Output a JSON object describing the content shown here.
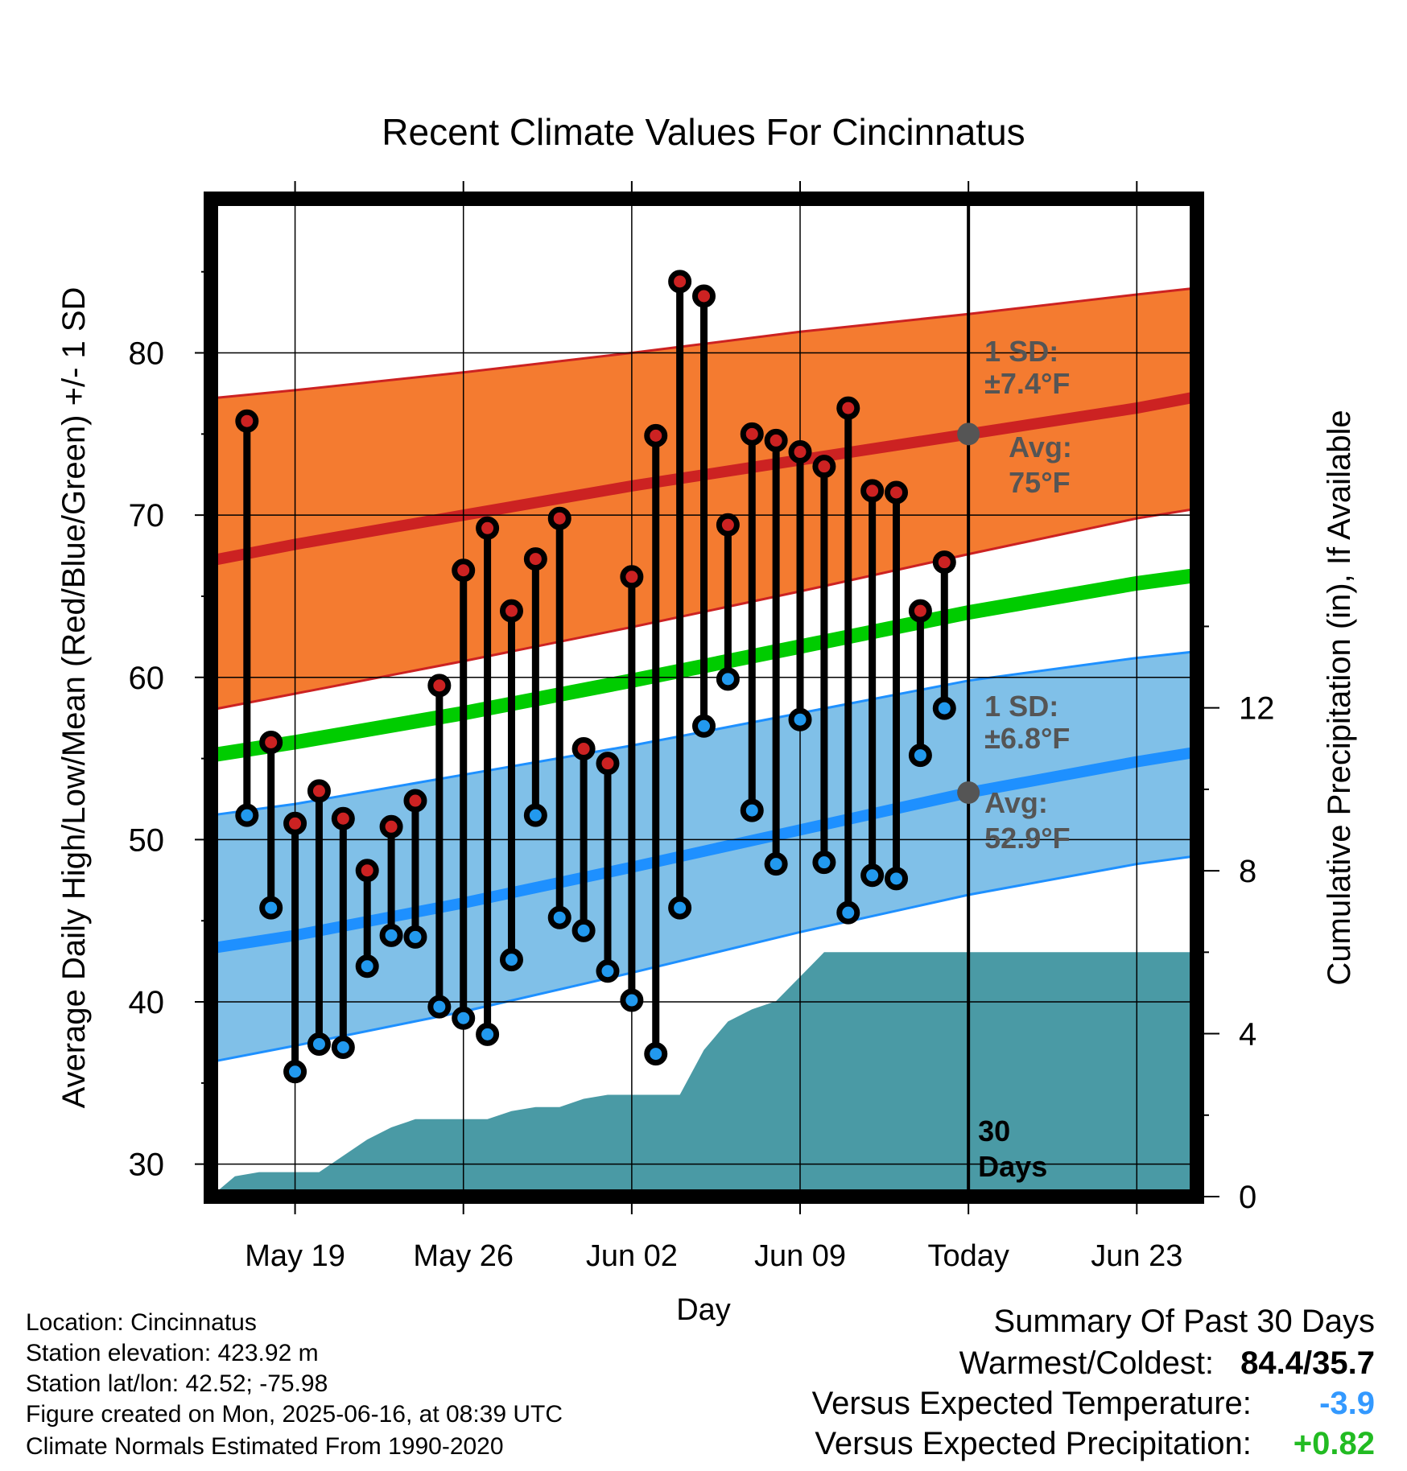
{
  "chart_data": {
    "type": "line",
    "title": "Recent Climate Values For Cincinnatus",
    "xlabel": "Day",
    "ylabel": "Average Daily High/Low/Mean (Red/Blue/Green) +/- 1 SD",
    "y2label": "Cumulative Precipitation (in), If Available",
    "x_ticks": [
      "May 19",
      "May 26",
      "Jun 02",
      "Jun 09",
      "Today",
      "Jun 23"
    ],
    "y_ticks": [
      "30",
      "40",
      "50",
      "60",
      "70",
      "80"
    ],
    "y2_ticks": [
      "0",
      "4",
      "8",
      "12"
    ],
    "ylim": [
      28,
      89.5
    ],
    "y2lim": [
      0,
      24.5
    ],
    "x_range_days": [
      -31.5,
      9.5
    ],
    "x_tick_days": [
      -28,
      -21,
      -14,
      -7,
      0,
      7
    ],
    "today_marker": {
      "day": 0,
      "label": "30\nDays"
    },
    "series": [
      {
        "name": "High",
        "days": [
          -30,
          -29,
          -28,
          -27,
          -26,
          -25,
          -24,
          -23,
          -22,
          -21,
          -20,
          -19,
          -18,
          -17,
          -16,
          -15,
          -14,
          -13,
          -12,
          -11,
          -10,
          -9,
          -8,
          -7,
          -6,
          -5,
          -4,
          -3,
          -2,
          -1
        ],
        "values": [
          75.8,
          56.0,
          51.0,
          53.0,
          51.3,
          48.1,
          50.8,
          52.4,
          59.5,
          66.6,
          69.2,
          64.1,
          67.3,
          69.8,
          55.6,
          54.7,
          66.2,
          74.9,
          84.4,
          83.5,
          69.4,
          75.0,
          74.6,
          73.9,
          73.0,
          76.6,
          71.5,
          71.4,
          64.1,
          67.1
        ]
      },
      {
        "name": "Low",
        "days": [
          -30,
          -29,
          -28,
          -27,
          -26,
          -25,
          -24,
          -23,
          -22,
          -21,
          -20,
          -19,
          -18,
          -17,
          -16,
          -15,
          -14,
          -13,
          -12,
          -11,
          -10,
          -9,
          -8,
          -7,
          -6,
          -5,
          -4,
          -3,
          -2,
          -1
        ],
        "values": [
          51.5,
          45.8,
          35.7,
          37.4,
          37.2,
          42.2,
          44.1,
          44.0,
          39.7,
          39.0,
          38.0,
          42.6,
          51.5,
          45.2,
          44.4,
          41.9,
          40.1,
          36.8,
          45.8,
          57.0,
          59.9,
          51.8,
          48.5,
          57.4,
          48.6,
          45.5,
          47.8,
          47.6,
          55.2,
          58.1
        ]
      }
    ],
    "normals": {
      "days": [
        -31.5,
        -28,
        -21,
        -14,
        -7,
        0,
        7,
        9.5
      ],
      "high_avg": [
        67.2,
        68.2,
        70.0,
        71.8,
        73.4,
        75.0,
        76.6,
        77.3
      ],
      "high_sd_upper": [
        77.2,
        77.7,
        78.8,
        80.0,
        81.3,
        82.4,
        83.6,
        84.0
      ],
      "high_sd_lower": [
        58.0,
        59.0,
        61.0,
        63.1,
        65.3,
        67.6,
        69.8,
        70.4
      ],
      "mean_avg": [
        55.2,
        56.0,
        57.8,
        59.8,
        61.9,
        64.0,
        65.8,
        66.3
      ],
      "low_avg": [
        43.3,
        44.1,
        46.1,
        48.3,
        50.6,
        52.9,
        54.8,
        55.4
      ],
      "low_sd_upper": [
        51.5,
        52.2,
        54.0,
        55.8,
        57.8,
        59.8,
        61.2,
        61.6
      ],
      "low_sd_lower": [
        36.3,
        37.3,
        39.4,
        41.8,
        44.3,
        46.6,
        48.5,
        49.0
      ],
      "high_sd_label": "1 SD:\n±7.4°F",
      "high_avg_label": "Avg:\n75°F",
      "low_sd_label": "1 SD:\n±6.8°F",
      "low_avg_label": "Avg:\n52.9°F"
    },
    "precipitation": {
      "days": [
        -31.5,
        -30.5,
        -29.5,
        -28,
        -27,
        -26,
        -25,
        -24,
        -23,
        -22,
        -21,
        -20,
        -19,
        -18,
        -17,
        -16,
        -15,
        -14,
        -13,
        -12,
        -11,
        -10,
        -9,
        -8,
        -7,
        -6,
        -5.5,
        -5,
        -3,
        -1,
        0,
        9.5
      ],
      "values": [
        0.0,
        0.5,
        0.6,
        0.6,
        0.6,
        1.0,
        1.4,
        1.7,
        1.9,
        1.9,
        1.9,
        1.9,
        2.1,
        2.2,
        2.2,
        2.4,
        2.5,
        2.5,
        2.5,
        2.5,
        3.6,
        4.3,
        4.6,
        4.8,
        5.4,
        6.0,
        6.0,
        6.0,
        6.0,
        6.0,
        6.0,
        6.0
      ]
    },
    "grid": true,
    "colors": {
      "high_band": "#f47b30",
      "high_line": "#cc2222",
      "low_band": "#80c0e8",
      "low_line": "#1e90ff",
      "mean_line": "#00cc00",
      "precip": "#4a9aa5",
      "high_dot": "#cc2222",
      "low_dot": "#2299ee",
      "label_gray": "#555555"
    }
  },
  "info": {
    "location": "Location: Cincinnatus",
    "elevation": "Station elevation: 423.92 m",
    "latlon": "Station lat/lon: 42.52; -75.98",
    "created": "Figure created on Mon, 2025-06-16, at 08:39 UTC",
    "normals": "Climate Normals Estimated From 1990-2020"
  },
  "summary": {
    "title": "Summary Of Past 30 Days",
    "warm_cold_label": "Warmest/Coldest:",
    "warm_cold_value": "84.4/35.7",
    "temp_label": "Versus Expected Temperature:",
    "temp_value": "-3.9",
    "temp_color": "#3399ff",
    "precip_label": "Versus Expected Precipitation:",
    "precip_value": "+0.82",
    "precip_color": "#22bb22"
  }
}
